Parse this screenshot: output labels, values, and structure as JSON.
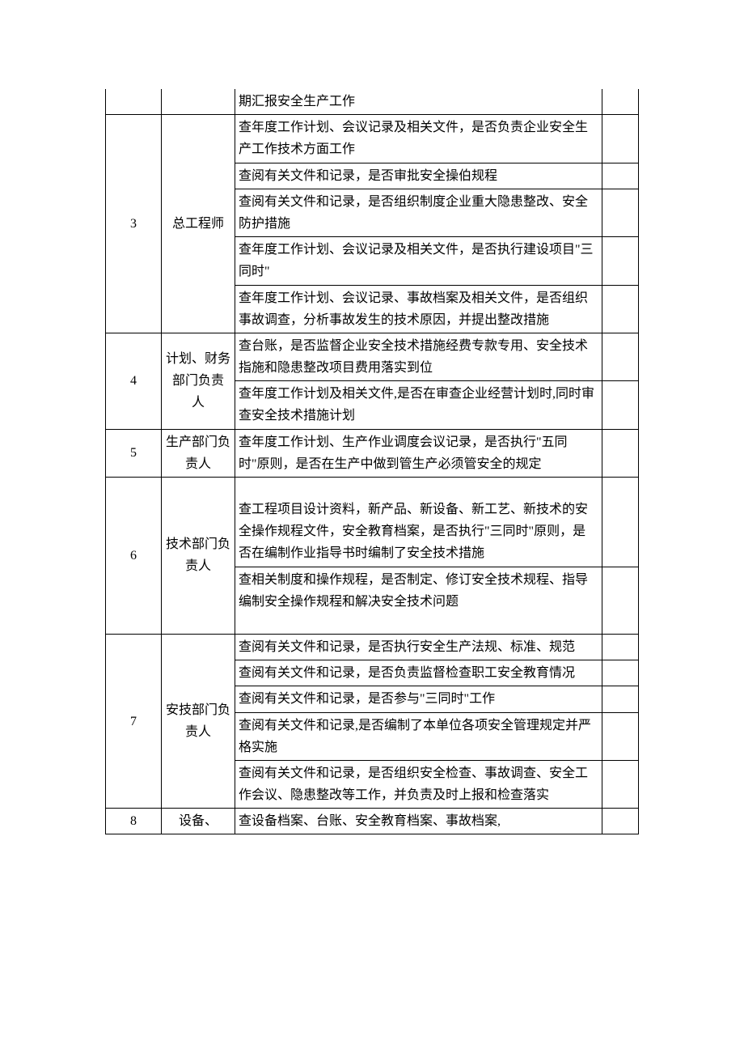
{
  "table": {
    "columns": {
      "idx_width": 60,
      "role_width": 82,
      "note_width": 36,
      "border_color": "#000000",
      "background_color": "#ffffff",
      "text_color": "#000000",
      "font_family": "SimSun",
      "font_size": 16
    },
    "rows": [
      {
        "idx": "",
        "role": "",
        "desc": "期汇报安全生产工作",
        "note": "",
        "open_top": true
      },
      {
        "idx": "3",
        "role": "总工程师",
        "idx_rowspan": 5,
        "role_rowspan": 5,
        "desc": "查年度工作计划、会议记录及相关文件，是否负责企业安全生产工作技术方面工作",
        "note": ""
      },
      {
        "desc": "查阅有关文件和记录，是否审批安全操伯规程",
        "note": ""
      },
      {
        "desc": "查阅有关文件和记录，是否组织制度企业重大隐患整改、安全防护措施",
        "note": ""
      },
      {
        "desc": "查年度工作计划、会议记录及相关文件，是否执行建设项目\"三同时\"",
        "note": ""
      },
      {
        "desc": "查年度工作计划、会议记录、事故档案及相关文件，是否组织事故调查，分析事故发生的技术原因，并提出整改措施",
        "note": ""
      },
      {
        "idx": "4",
        "role": "计划、财务部门负责\n人",
        "idx_rowspan": 2,
        "role_rowspan": 2,
        "desc": "查台账，是否监督企业安全技术措施经费专款专用、安全技术指施和隐患整改项目费用落实到位",
        "note": ""
      },
      {
        "desc": "查年度工作计划及相关文件,是否在审查企业经营计划时,同时审查安全技术措施计划",
        "note": ""
      },
      {
        "idx": "5",
        "role": "生产部门负责人",
        "desc": "查年度工作计划、生产作业调度会议记录，是否执行\"五同时\"原则，是否在生产中做到管生产必须管安全的规定",
        "note": ""
      },
      {
        "idx": "6",
        "role": "技术部门负责人",
        "idx_rowspan": 2,
        "role_rowspan": 2,
        "desc": "查工程项目设计资料，新产品、新设备、新工艺、新技术的安全操作规程文件，安全教育档案，是否执行\"三同时\"原则，是否在编制作业指导书时编制了安全技术措施",
        "note": "",
        "pad_top": true
      },
      {
        "desc": "查相关制度和操作规程，是否制定、修订安全技术规程、指导编制安全操作规程和解决安全技术问题",
        "note": "",
        "pad_bottom": true
      },
      {
        "idx": "7",
        "role": "安技部门负责人",
        "idx_rowspan": 5,
        "role_rowspan": 5,
        "desc": "查阅有关文件和记录，是否执行安全生产法规、标准、规范",
        "note": ""
      },
      {
        "desc": "查阅有关文件和记录，是否负责监督检查职工安全教育情况",
        "note": ""
      },
      {
        "desc": "查阅有关文件和记录，是否参与\"三同时\"工作",
        "note": ""
      },
      {
        "desc": "查阅有关文件和记录,是否编制了本单位各项安全管理规定并严格实施",
        "note": ""
      },
      {
        "desc": "查阅有关文件和记录，是否组织安全检查、事故调查、安全工作会议、隐患整改等工作，并负责及时上报和检查落实",
        "note": ""
      },
      {
        "idx": "8",
        "role": "设备、",
        "desc": "查设备档案、台账、安全教育档案、事故档案,",
        "note": ""
      }
    ]
  }
}
